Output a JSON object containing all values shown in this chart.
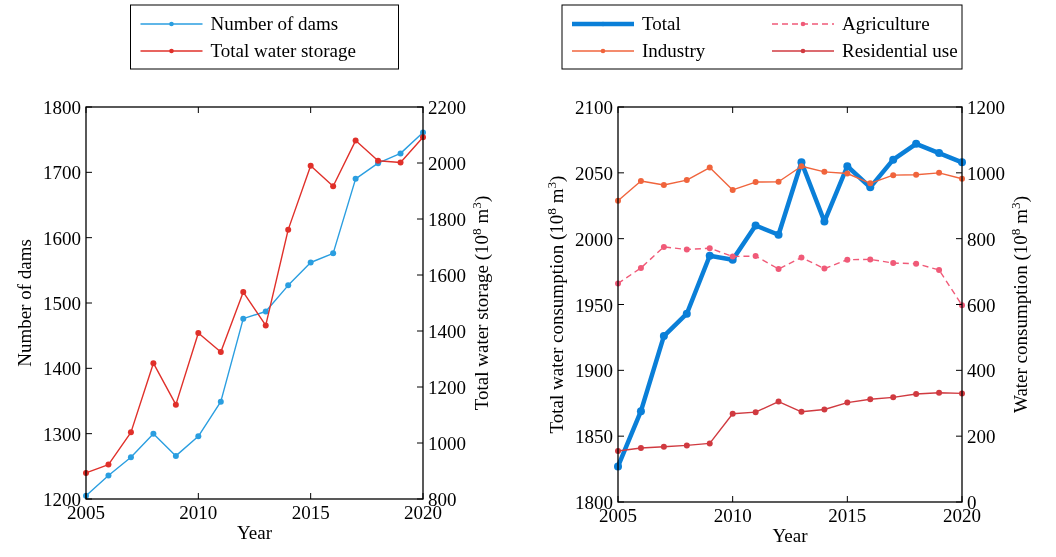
{
  "chart_data": [
    {
      "type": "line",
      "xlabel": "Year",
      "ylabel": "Number of dams",
      "y2label": "Total water storage (10$^{8}$ m$^{3}$)",
      "x": [
        2005,
        2006,
        2007,
        2008,
        2009,
        2010,
        2011,
        2012,
        2013,
        2014,
        2015,
        2016,
        2017,
        2018,
        2019,
        2020
      ],
      "xlim": [
        2005,
        2020
      ],
      "xticks": [
        2005,
        2010,
        2015,
        2020
      ],
      "ylim": [
        1200,
        1800
      ],
      "yticks": [
        1200,
        1300,
        1400,
        1500,
        1600,
        1700,
        1800
      ],
      "y2lim": [
        800,
        2200
      ],
      "y2ticks": [
        800,
        1000,
        1200,
        1400,
        1600,
        1800,
        2000,
        2200
      ],
      "marker": "circle",
      "legend": "top",
      "grid": false,
      "series": [
        {
          "name": "Number of dams",
          "color": "#2a9ee0",
          "values": [
            1205,
            1236,
            1264,
            1300,
            1266,
            1296,
            1349,
            1476,
            1487,
            1527,
            1562,
            1576,
            1690,
            1714,
            1729,
            1761
          ]
        },
        {
          "name": "Total water storage",
          "color": "#e0302a",
          "axis": "y2",
          "values": [
            893,
            923,
            1038,
            1285,
            1137,
            1393,
            1325,
            1539,
            1420,
            1762,
            1990,
            1917,
            2080,
            2008,
            2002,
            2092
          ]
        }
      ]
    },
    {
      "type": "line",
      "xlabel": "Year",
      "ylabel": "Total water consumption (10$^{8}$ m$^{3}$)",
      "y2label": "Water consumption (10$^{8}$ m$^{3}$)",
      "x": [
        2005,
        2006,
        2007,
        2008,
        2009,
        2010,
        2011,
        2012,
        2013,
        2014,
        2015,
        2016,
        2017,
        2018,
        2019,
        2020
      ],
      "xlim": [
        2005,
        2020
      ],
      "xticks": [
        2005,
        2010,
        2015,
        2020
      ],
      "ylim": [
        1800,
        2100
      ],
      "yticks": [
        1800,
        1850,
        1900,
        1950,
        2000,
        2050,
        2100
      ],
      "y2lim": [
        0,
        1200
      ],
      "y2ticks": [
        0,
        200,
        400,
        600,
        800,
        1000,
        1200
      ],
      "marker": "circle",
      "legend": "top",
      "grid": false,
      "series": [
        {
          "name": "Total",
          "color": "#0a7fd8",
          "values": [
            1827,
            1869,
            1926,
            1943,
            1987,
            1984,
            2010,
            2003,
            2058,
            2013,
            2055,
            2039,
            2060,
            2072,
            2065,
            2058
          ]
        },
        {
          "name": "Agriculture",
          "color": "#f05a78",
          "axis": "y2",
          "line_style": "dashed",
          "values": [
            664,
            711,
            775,
            767,
            771,
            746,
            747,
            708,
            743,
            709,
            736,
            737,
            726,
            724,
            705,
            598
          ]
        },
        {
          "name": "Industry",
          "color": "#f0643c",
          "axis": "y2",
          "values": [
            915,
            975,
            963,
            978,
            1016,
            948,
            972,
            973,
            1020,
            1003,
            998,
            968,
            993,
            994,
            1000,
            982
          ]
        },
        {
          "name": "Residential use",
          "color": "#d03a40",
          "axis": "y2",
          "values": [
            155,
            164,
            168,
            172,
            178,
            268,
            273,
            305,
            274,
            281,
            302,
            312,
            318,
            328,
            332,
            330
          ]
        }
      ]
    }
  ]
}
